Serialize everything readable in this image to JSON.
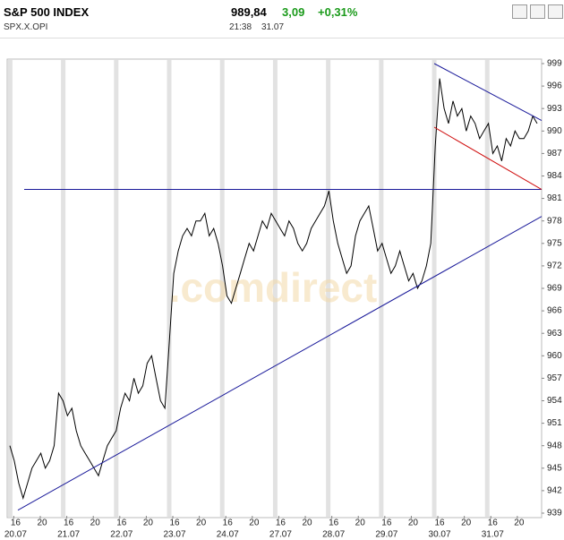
{
  "header": {
    "title": "S&P 500 INDEX",
    "symbol": "SPX.X.OPI",
    "price": "989,84",
    "change": "3,09",
    "change_percent": "+0,31%",
    "time": "21:38",
    "date": "31.07"
  },
  "chart_data": {
    "type": "line",
    "watermark": ".comdirect",
    "series": [
      {
        "color": "#000000",
        "values": [
          948,
          946,
          943,
          941,
          943,
          945,
          946,
          947,
          945,
          946,
          948,
          955,
          954,
          952,
          953,
          950,
          948,
          947,
          946,
          945,
          944,
          946,
          948,
          949,
          950,
          953,
          955,
          954,
          957,
          955,
          956,
          959,
          960,
          957,
          954,
          953,
          962,
          971,
          974,
          976,
          977,
          976,
          978,
          978,
          979,
          976,
          977,
          975,
          972,
          968,
          967,
          969,
          971,
          973,
          975,
          974,
          976,
          978,
          977,
          979,
          978,
          977,
          976,
          978,
          977,
          975,
          974,
          975,
          977,
          978,
          979,
          980,
          982,
          978,
          975,
          973,
          971,
          972,
          976,
          978,
          979,
          980,
          977,
          974,
          975,
          973,
          971,
          972,
          974,
          972,
          970,
          971,
          969,
          970,
          972,
          975,
          988,
          997,
          993,
          991,
          994,
          992,
          993,
          990,
          992,
          991,
          989,
          990,
          991,
          987,
          988,
          986,
          989,
          988,
          990,
          989,
          989,
          990,
          992,
          991
        ]
      }
    ],
    "xlim": [
      -1,
      120
    ],
    "xticks": [
      {
        "value": 0.5,
        "label": "16"
      },
      {
        "value": 6.5,
        "label": "20"
      },
      {
        "value": 12.5,
        "label": "16"
      },
      {
        "value": 18.5,
        "label": "20"
      },
      {
        "value": 24.5,
        "label": "16"
      },
      {
        "value": 30.5,
        "label": "20"
      },
      {
        "value": 36.5,
        "label": "16"
      },
      {
        "value": 42.5,
        "label": "20"
      },
      {
        "value": 48.5,
        "label": "16"
      },
      {
        "value": 54.5,
        "label": "20"
      },
      {
        "value": 60.5,
        "label": "16"
      },
      {
        "value": 66.5,
        "label": "20"
      },
      {
        "value": 72.5,
        "label": "16"
      },
      {
        "value": 78.5,
        "label": "20"
      },
      {
        "value": 84.5,
        "label": "16"
      },
      {
        "value": 90.5,
        "label": "20"
      },
      {
        "value": 96.5,
        "label": "16"
      },
      {
        "value": 102.5,
        "label": "20"
      },
      {
        "value": 108.5,
        "label": "16"
      },
      {
        "value": 114.5,
        "label": "20"
      }
    ],
    "day_labels": [
      {
        "value": 0.5,
        "label": "20.07"
      },
      {
        "value": 12.5,
        "label": "21.07"
      },
      {
        "value": 24.5,
        "label": "22.07"
      },
      {
        "value": 36.5,
        "label": "23.07"
      },
      {
        "value": 48.5,
        "label": "24.07"
      },
      {
        "value": 60.5,
        "label": "27.07"
      },
      {
        "value": 72.5,
        "label": "28.07"
      },
      {
        "value": 84.5,
        "label": "29.07"
      },
      {
        "value": 96.5,
        "label": "30.07"
      },
      {
        "value": 108.5,
        "label": "31.07"
      }
    ],
    "ylim": [
      939,
      999
    ],
    "yticks": [
      939,
      942,
      945,
      948,
      951,
      954,
      957,
      960,
      963,
      966,
      969,
      972,
      975,
      978,
      981,
      984,
      987,
      990,
      993,
      996,
      999
    ],
    "trendlines": [
      {
        "color": "#1a1a9a",
        "points": [
          [
            2.85,
            982.2
          ],
          [
            120,
            982.2
          ]
        ]
      },
      {
        "color": "#1a1a9a",
        "points": [
          [
            1.43,
            939.4
          ],
          [
            120,
            978.6
          ]
        ]
      },
      {
        "color": "#1a1a9a",
        "points": [
          [
            95.7,
            999
          ],
          [
            120,
            991.4
          ]
        ]
      },
      {
        "color": "#d01010",
        "points": [
          [
            95.7,
            990.5
          ],
          [
            120,
            982.2
          ]
        ]
      }
    ]
  }
}
